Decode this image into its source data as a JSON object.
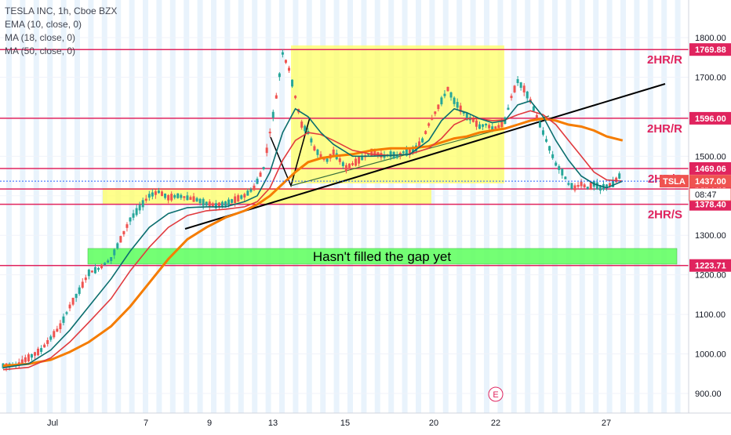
{
  "legend": {
    "symbol": "TESLA INC, 1h, Cboe BZX",
    "ema": "EMA (10, close, 0)",
    "ma18": "MA (18, close, 0)",
    "ma50": "MA (50, close, 0)"
  },
  "colors": {
    "level_line": "#e0245e",
    "ema": "#0b6e6e",
    "ma18": "#e03a3e",
    "ma50": "#f57c00",
    "up": "#26a69a",
    "down": "#ef5350",
    "highlight_yellow": "#ffff66",
    "gap_green": "#66ff66",
    "session_band": "#e3f0fb",
    "last_price": "#2962ff"
  },
  "chart_data": {
    "type": "candlestick",
    "title": "TESLA INC, 1h, Cboe BZX",
    "ylim": [
      870,
      1840
    ],
    "y_ticks": [
      "1800.00",
      "1700.00",
      "1600.00",
      "1500.00",
      "1400.00",
      "1300.00",
      "1200.00",
      "1100.00",
      "1000.00",
      "900.00"
    ],
    "x_ticks": [
      "Jul",
      "7",
      "9",
      "13",
      "15",
      "20",
      "22",
      "27"
    ],
    "levels": [
      {
        "value": 1769.88,
        "label": "1769.88",
        "tag": "2HR/R"
      },
      {
        "value": 1596.0,
        "label": "1596.00",
        "tag": "2HR/R"
      },
      {
        "value": 1469.06,
        "label": "1469.06",
        "tag": "2HR/S"
      },
      {
        "value": 1417.24,
        "label": "1417.24",
        "tag": ""
      },
      {
        "value": 1378.4,
        "label": "1378.40",
        "tag": "2HR/S"
      },
      {
        "value": 1223.71,
        "label": "1223.71",
        "tag": ""
      }
    ],
    "last_price": {
      "value": 1437.0,
      "label": "1437.00",
      "symbol": "TSLA",
      "countdown": "08:47"
    },
    "annotation": "Hasn't filled the gap yet",
    "marker_letter": "E",
    "close_path": [
      [
        0,
        970
      ],
      [
        4,
        972
      ],
      [
        8,
        990
      ],
      [
        12,
        1010
      ],
      [
        15,
        1040
      ],
      [
        18,
        1070
      ],
      [
        21,
        1120
      ],
      [
        24,
        1160
      ],
      [
        27,
        1205
      ],
      [
        30,
        1215
      ],
      [
        34,
        1240
      ],
      [
        37,
        1290
      ],
      [
        40,
        1340
      ],
      [
        43,
        1370
      ],
      [
        46,
        1400
      ],
      [
        49,
        1410
      ],
      [
        52,
        1395
      ],
      [
        55,
        1400
      ],
      [
        58,
        1395
      ],
      [
        61,
        1390
      ],
      [
        64,
        1380
      ],
      [
        67,
        1375
      ],
      [
        70,
        1380
      ],
      [
        73,
        1390
      ],
      [
        76,
        1400
      ],
      [
        79,
        1420
      ],
      [
        82,
        1470
      ],
      [
        84,
        1560
      ],
      [
        86,
        1650
      ],
      [
        88,
        1760
      ],
      [
        90,
        1720
      ],
      [
        92,
        1650
      ],
      [
        94,
        1580
      ],
      [
        96,
        1560
      ],
      [
        98,
        1520
      ],
      [
        100,
        1500
      ],
      [
        102,
        1490
      ],
      [
        104,
        1510
      ],
      [
        106,
        1490
      ],
      [
        108,
        1470
      ],
      [
        110,
        1480
      ],
      [
        112,
        1490
      ],
      [
        114,
        1500
      ],
      [
        116,
        1510
      ],
      [
        118,
        1505
      ],
      [
        120,
        1500
      ],
      [
        122,
        1505
      ],
      [
        124,
        1500
      ],
      [
        126,
        1510
      ],
      [
        128,
        1510
      ],
      [
        130,
        1520
      ],
      [
        132,
        1540
      ],
      [
        134,
        1580
      ],
      [
        136,
        1610
      ],
      [
        138,
        1640
      ],
      [
        140,
        1670
      ],
      [
        142,
        1640
      ],
      [
        144,
        1620
      ],
      [
        146,
        1600
      ],
      [
        148,
        1590
      ],
      [
        150,
        1575
      ],
      [
        152,
        1580
      ],
      [
        154,
        1570
      ],
      [
        156,
        1575
      ],
      [
        158,
        1590
      ],
      [
        160,
        1650
      ],
      [
        162,
        1690
      ],
      [
        164,
        1670
      ],
      [
        166,
        1640
      ],
      [
        168,
        1600
      ],
      [
        170,
        1560
      ],
      [
        172,
        1520
      ],
      [
        174,
        1480
      ],
      [
        176,
        1460
      ],
      [
        178,
        1430
      ],
      [
        180,
        1420
      ],
      [
        182,
        1430
      ],
      [
        184,
        1420
      ],
      [
        186,
        1430
      ],
      [
        188,
        1420
      ],
      [
        190,
        1425
      ],
      [
        192,
        1430
      ],
      [
        194,
        1450
      ],
      [
        195,
        1437
      ]
    ],
    "ema_10": [
      [
        0,
        965
      ],
      [
        8,
        975
      ],
      [
        15,
        1010
      ],
      [
        21,
        1060
      ],
      [
        27,
        1120
      ],
      [
        34,
        1190
      ],
      [
        40,
        1260
      ],
      [
        46,
        1320
      ],
      [
        52,
        1355
      ],
      [
        58,
        1370
      ],
      [
        64,
        1372
      ],
      [
        70,
        1372
      ],
      [
        76,
        1385
      ],
      [
        80,
        1400
      ],
      [
        84,
        1460
      ],
      [
        88,
        1560
      ],
      [
        92,
        1620
      ],
      [
        96,
        1600
      ],
      [
        100,
        1560
      ],
      [
        104,
        1530
      ],
      [
        110,
        1500
      ],
      [
        116,
        1500
      ],
      [
        122,
        1502
      ],
      [
        128,
        1505
      ],
      [
        134,
        1540
      ],
      [
        138,
        1590
      ],
      [
        142,
        1620
      ],
      [
        146,
        1610
      ],
      [
        150,
        1595
      ],
      [
        154,
        1585
      ],
      [
        158,
        1590
      ],
      [
        162,
        1630
      ],
      [
        166,
        1640
      ],
      [
        170,
        1600
      ],
      [
        174,
        1540
      ],
      [
        178,
        1490
      ],
      [
        182,
        1450
      ],
      [
        186,
        1430
      ],
      [
        190,
        1420
      ],
      [
        195,
        1437
      ]
    ],
    "ma_18": [
      [
        0,
        960
      ],
      [
        8,
        966
      ],
      [
        15,
        990
      ],
      [
        21,
        1030
      ],
      [
        27,
        1080
      ],
      [
        34,
        1140
      ],
      [
        40,
        1210
      ],
      [
        46,
        1270
      ],
      [
        52,
        1320
      ],
      [
        58,
        1350
      ],
      [
        64,
        1362
      ],
      [
        70,
        1366
      ],
      [
        76,
        1372
      ],
      [
        80,
        1385
      ],
      [
        84,
        1420
      ],
      [
        88,
        1490
      ],
      [
        92,
        1540
      ],
      [
        96,
        1560
      ],
      [
        100,
        1555
      ],
      [
        104,
        1540
      ],
      [
        110,
        1515
      ],
      [
        116,
        1505
      ],
      [
        122,
        1502
      ],
      [
        128,
        1505
      ],
      [
        134,
        1520
      ],
      [
        138,
        1545
      ],
      [
        142,
        1580
      ],
      [
        146,
        1595
      ],
      [
        150,
        1595
      ],
      [
        154,
        1590
      ],
      [
        158,
        1592
      ],
      [
        162,
        1605
      ],
      [
        166,
        1615
      ],
      [
        170,
        1605
      ],
      [
        174,
        1580
      ],
      [
        178,
        1540
      ],
      [
        182,
        1500
      ],
      [
        186,
        1460
      ],
      [
        190,
        1440
      ],
      [
        195,
        1437
      ]
    ],
    "ma_50": [
      [
        0,
        970
      ],
      [
        8,
        975
      ],
      [
        15,
        985
      ],
      [
        21,
        1005
      ],
      [
        27,
        1030
      ],
      [
        34,
        1070
      ],
      [
        40,
        1120
      ],
      [
        46,
        1180
      ],
      [
        52,
        1240
      ],
      [
        58,
        1290
      ],
      [
        64,
        1320
      ],
      [
        70,
        1345
      ],
      [
        76,
        1362
      ],
      [
        80,
        1378
      ],
      [
        84,
        1400
      ],
      [
        88,
        1430
      ],
      [
        92,
        1460
      ],
      [
        96,
        1485
      ],
      [
        100,
        1495
      ],
      [
        104,
        1500
      ],
      [
        110,
        1505
      ],
      [
        116,
        1515
      ],
      [
        122,
        1520
      ],
      [
        128,
        1520
      ],
      [
        134,
        1525
      ],
      [
        138,
        1535
      ],
      [
        142,
        1545
      ],
      [
        146,
        1550
      ],
      [
        150,
        1560
      ],
      [
        154,
        1565
      ],
      [
        158,
        1570
      ],
      [
        162,
        1580
      ],
      [
        166,
        1590
      ],
      [
        170,
        1595
      ],
      [
        174,
        1590
      ],
      [
        178,
        1580
      ],
      [
        182,
        1575
      ],
      [
        186,
        1565
      ],
      [
        190,
        1550
      ],
      [
        195,
        1540
      ]
    ]
  }
}
